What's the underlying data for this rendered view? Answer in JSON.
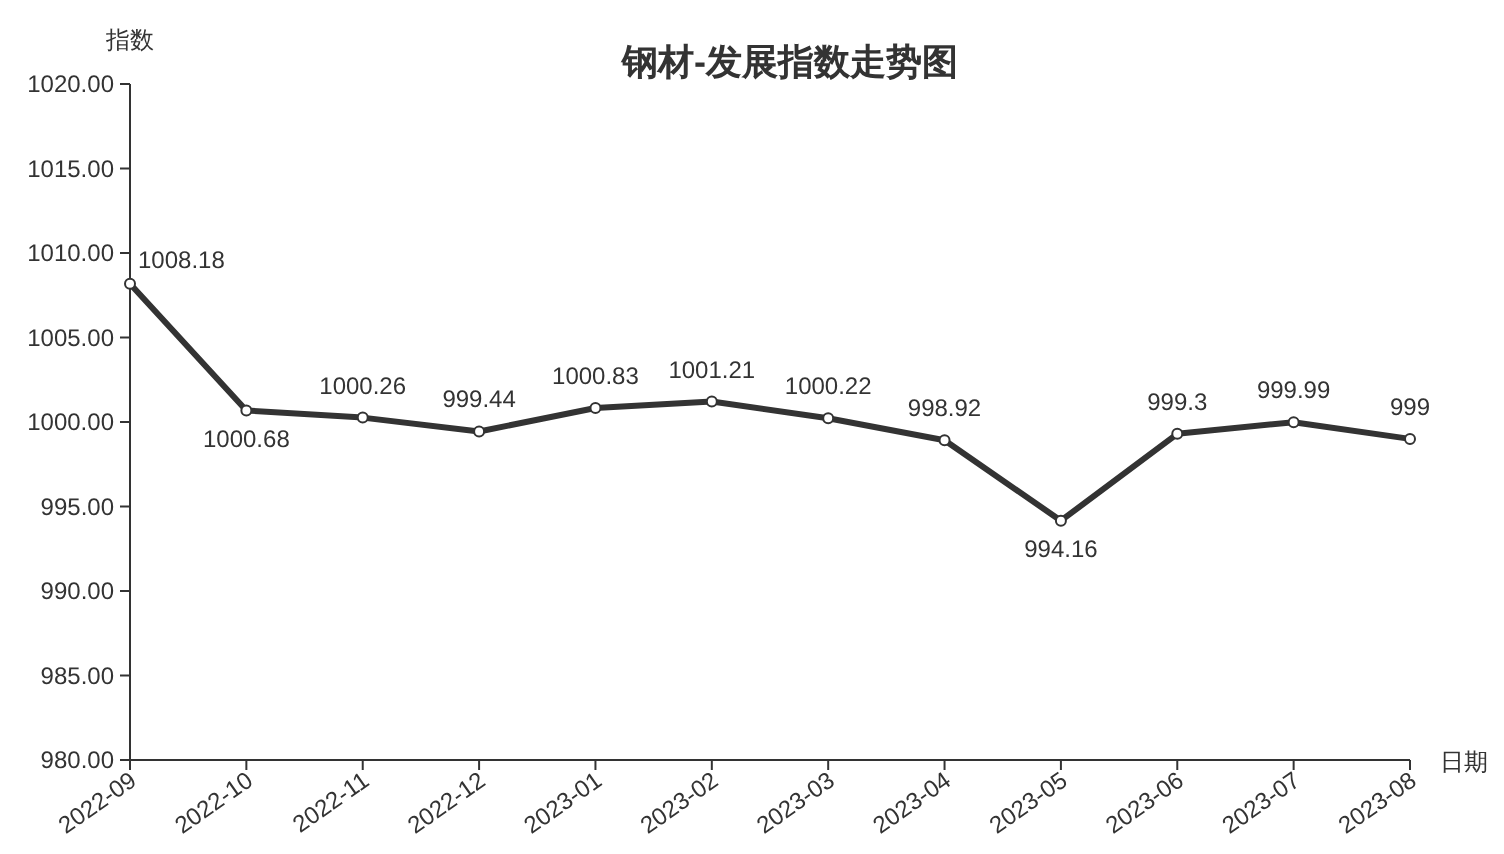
{
  "chart_data": {
    "type": "line",
    "title": "钢材-发展指数走势图",
    "ylabel": "指数",
    "xlabel": "日期",
    "categories": [
      "2022-09",
      "2022-10",
      "2022-11",
      "2022-12",
      "2023-01",
      "2023-02",
      "2023-03",
      "2023-04",
      "2023-05",
      "2023-06",
      "2023-07",
      "2023-08"
    ],
    "series": [
      {
        "color": "#333333",
        "values": [
          1008.18,
          1000.68,
          1000.26,
          999.44,
          1000.83,
          1001.21,
          1000.22,
          998.92,
          994.16,
          999.3,
          999.99,
          999
        ]
      }
    ],
    "ylim": [
      980,
      1020
    ],
    "yticks": [
      {
        "value": 980,
        "label": "980.00"
      },
      {
        "value": 985,
        "label": "985.00"
      },
      {
        "value": 990,
        "label": "990.00"
      },
      {
        "value": 995,
        "label": "995.00"
      },
      {
        "value": 1000,
        "label": "1000.00"
      },
      {
        "value": 1005,
        "label": "1005.00"
      },
      {
        "value": 1010,
        "label": "1010.00"
      },
      {
        "value": 1015,
        "label": "1015.00"
      },
      {
        "value": 1020,
        "label": "1020.00"
      }
    ],
    "marker": "circle",
    "grid": false,
    "data_labels": true
  }
}
